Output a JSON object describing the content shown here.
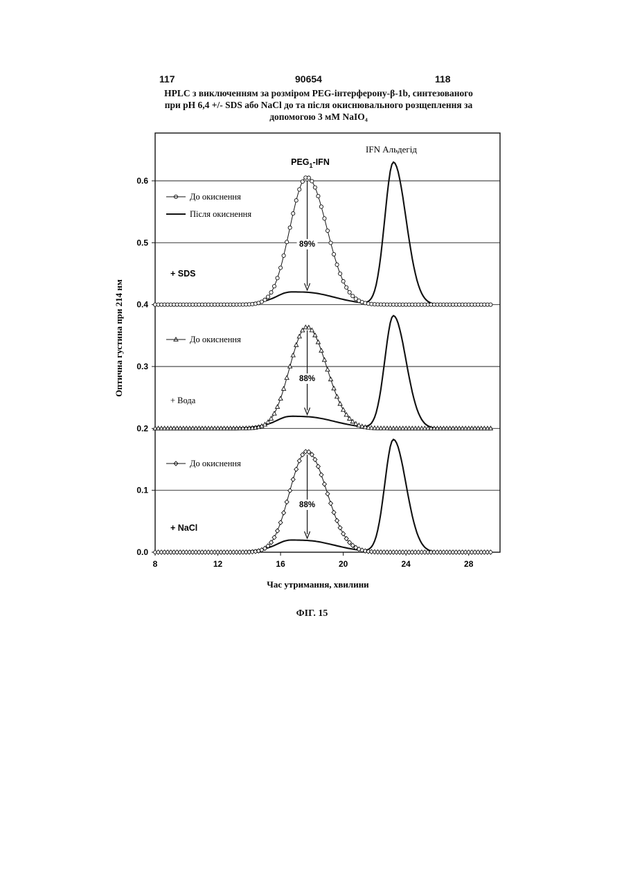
{
  "header": {
    "page_left": "117",
    "patent_number": "90654",
    "page_right": "118"
  },
  "title_lines": [
    "HPLC з виключенням за розміром PEG-інтерферону-β-1b, синтезованого",
    "при pH 6,4 +/- SDS або NaCl до та після окиснювального розщеплення за",
    "допомогою 3 мМ NaIO₄"
  ],
  "figure_caption": "ФІГ. 15",
  "chart_data": {
    "type": "line",
    "ylabel": "Оптична густина при 214 нм",
    "xlabel": "Час утримання, хвилини",
    "xlim": [
      8,
      30
    ],
    "ylim": [
      0,
      0.65
    ],
    "x_ticks": [
      "8",
      "12",
      "16",
      "20",
      "24",
      "28"
    ],
    "y_ticks": [
      "0.0",
      "0.1",
      "0.2",
      "0.3",
      "0.4",
      "0.5",
      "0.6"
    ],
    "grid": "horizontal",
    "peak_labels": {
      "peg": "PEG1-IFN",
      "aldehyde": "IFN Альдегід"
    },
    "panels": [
      {
        "label": "+ SDS",
        "baseline": 0.4,
        "before_label": "До окиснення",
        "after_label": "Після окиснення",
        "marker": "circle",
        "percent_label": "89%",
        "series": [
          {
            "name": "До окиснення",
            "peak_time": 17.7,
            "peak_value": 0.605
          },
          {
            "name": "Після окиснення",
            "peak_time": 17.5,
            "peak_value": 0.42
          },
          {
            "peak_time": 23.2,
            "peak_value": 0.63
          }
        ]
      },
      {
        "label": "+ Вода",
        "baseline": 0.2,
        "before_label": "До окиснення",
        "marker": "triangle",
        "percent_label": "88%",
        "series": [
          {
            "name": "До окиснення",
            "peak_time": 17.7,
            "peak_value": 0.363
          },
          {
            "peak_time": 17.5,
            "peak_value": 0.219
          },
          {
            "peak_time": 23.2,
            "peak_value": 0.382
          }
        ]
      },
      {
        "label": "+ NaCl",
        "baseline": 0.0,
        "before_label": "До окиснення",
        "marker": "diamond",
        "percent_label": "88%",
        "series": [
          {
            "name": "До окиснення",
            "peak_time": 17.7,
            "peak_value": 0.162
          },
          {
            "peak_time": 17.5,
            "peak_value": 0.019
          },
          {
            "peak_time": 23.2,
            "peak_value": 0.182
          }
        ]
      }
    ]
  }
}
